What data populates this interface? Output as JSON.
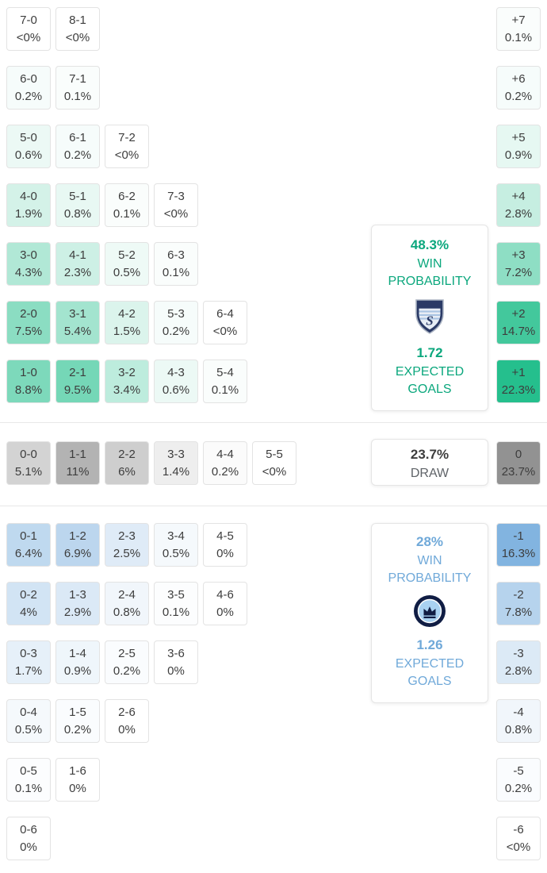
{
  "colors": {
    "home_cell": "#25bf8d",
    "draw_cell": "#929292",
    "away_cell": "#79aede",
    "home_text": "#0ba77d",
    "away_text": "#70a9d9",
    "cell_text": "#3d3d3d",
    "draw_value_text": "#3d3d3d",
    "draw_label_text": "#5f6368",
    "cell_border": "#e3e3e3",
    "card_border": "#e5e5e5",
    "divider": "#e8e8e8"
  },
  "home_summary": {
    "win_probability": "48.3%",
    "win_probability_label": "WIN PROBABILITY",
    "expected_goals": "1.72",
    "expected_goals_label": "EXPECTED GOALS",
    "logo_icon": "sporting-kc-crest"
  },
  "draw_summary": {
    "probability": "23.7%",
    "label": "DRAW"
  },
  "away_summary": {
    "win_probability": "28%",
    "win_probability_label": "WIN PROBABILITY",
    "expected_goals": "1.26",
    "expected_goals_label": "EXPECTED GOALS",
    "logo_icon": "charlotte-fc-crest"
  },
  "chart_data": {
    "type": "heatmap",
    "unit": "probability_percent",
    "home_win": {
      "rows": [
        [
          {
            "score": "7-0",
            "pct": "<0%"
          },
          {
            "score": "8-1",
            "pct": "<0%"
          }
        ],
        [
          {
            "score": "6-0",
            "pct": "0.2%"
          },
          {
            "score": "7-1",
            "pct": "0.1%"
          }
        ],
        [
          {
            "score": "5-0",
            "pct": "0.6%"
          },
          {
            "score": "6-1",
            "pct": "0.2%"
          },
          {
            "score": "7-2",
            "pct": "<0%"
          }
        ],
        [
          {
            "score": "4-0",
            "pct": "1.9%"
          },
          {
            "score": "5-1",
            "pct": "0.8%"
          },
          {
            "score": "6-2",
            "pct": "0.1%"
          },
          {
            "score": "7-3",
            "pct": "<0%"
          }
        ],
        [
          {
            "score": "3-0",
            "pct": "4.3%"
          },
          {
            "score": "4-1",
            "pct": "2.3%"
          },
          {
            "score": "5-2",
            "pct": "0.5%"
          },
          {
            "score": "6-3",
            "pct": "0.1%"
          }
        ],
        [
          {
            "score": "2-0",
            "pct": "7.5%"
          },
          {
            "score": "3-1",
            "pct": "5.4%"
          },
          {
            "score": "4-2",
            "pct": "1.5%"
          },
          {
            "score": "5-3",
            "pct": "0.2%"
          },
          {
            "score": "6-4",
            "pct": "<0%"
          }
        ],
        [
          {
            "score": "1-0",
            "pct": "8.8%"
          },
          {
            "score": "2-1",
            "pct": "9.5%"
          },
          {
            "score": "3-2",
            "pct": "3.4%"
          },
          {
            "score": "4-3",
            "pct": "0.6%"
          },
          {
            "score": "5-4",
            "pct": "0.1%"
          }
        ]
      ]
    },
    "draw": {
      "row": [
        {
          "score": "0-0",
          "pct": "5.1%"
        },
        {
          "score": "1-1",
          "pct": "11%"
        },
        {
          "score": "2-2",
          "pct": "6%"
        },
        {
          "score": "3-3",
          "pct": "1.4%"
        },
        {
          "score": "4-4",
          "pct": "0.2%"
        },
        {
          "score": "5-5",
          "pct": "<0%"
        }
      ]
    },
    "away_win": {
      "rows": [
        [
          {
            "score": "0-1",
            "pct": "6.4%"
          },
          {
            "score": "1-2",
            "pct": "6.9%"
          },
          {
            "score": "2-3",
            "pct": "2.5%"
          },
          {
            "score": "3-4",
            "pct": "0.5%"
          },
          {
            "score": "4-5",
            "pct": "0%"
          }
        ],
        [
          {
            "score": "0-2",
            "pct": "4%"
          },
          {
            "score": "1-3",
            "pct": "2.9%"
          },
          {
            "score": "2-4",
            "pct": "0.8%"
          },
          {
            "score": "3-5",
            "pct": "0.1%"
          },
          {
            "score": "4-6",
            "pct": "0%"
          }
        ],
        [
          {
            "score": "0-3",
            "pct": "1.7%"
          },
          {
            "score": "1-4",
            "pct": "0.9%"
          },
          {
            "score": "2-5",
            "pct": "0.2%"
          },
          {
            "score": "3-6",
            "pct": "0%"
          }
        ],
        [
          {
            "score": "0-4",
            "pct": "0.5%"
          },
          {
            "score": "1-5",
            "pct": "0.2%"
          },
          {
            "score": "2-6",
            "pct": "0%"
          }
        ],
        [
          {
            "score": "0-5",
            "pct": "0.1%"
          },
          {
            "score": "1-6",
            "pct": "0%"
          }
        ],
        [
          {
            "score": "0-6",
            "pct": "0%"
          }
        ]
      ]
    },
    "goal_margins": {
      "home": [
        {
          "diff": "+7",
          "pct": "0.1%"
        },
        {
          "diff": "+6",
          "pct": "0.2%"
        },
        {
          "diff": "+5",
          "pct": "0.9%"
        },
        {
          "diff": "+4",
          "pct": "2.8%"
        },
        {
          "diff": "+3",
          "pct": "7.2%"
        },
        {
          "diff": "+2",
          "pct": "14.7%"
        },
        {
          "diff": "+1",
          "pct": "22.3%"
        }
      ],
      "draw": {
        "diff": "0",
        "pct": "23.7%"
      },
      "away": [
        {
          "diff": "-1",
          "pct": "16.3%"
        },
        {
          "diff": "-2",
          "pct": "7.8%"
        },
        {
          "diff": "-3",
          "pct": "2.8%"
        },
        {
          "diff": "-4",
          "pct": "0.8%"
        },
        {
          "diff": "-5",
          "pct": "0.2%"
        },
        {
          "diff": "-6",
          "pct": "<0%"
        }
      ]
    }
  }
}
